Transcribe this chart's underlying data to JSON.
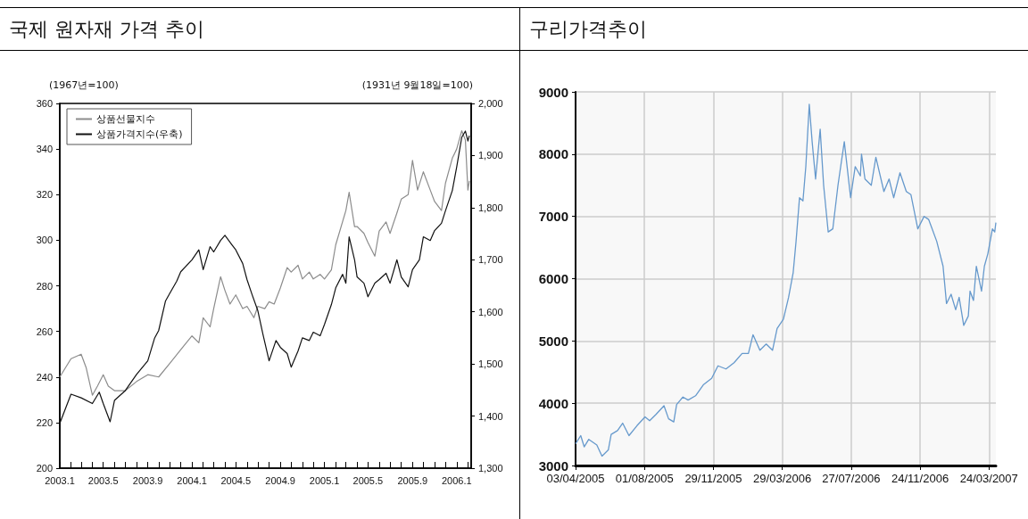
{
  "chart_data": [
    {
      "type": "line",
      "title": "국제 원자재 가격 추이",
      "annotations": [
        "(1967년=100)",
        "(1931년 9월18일=100)"
      ],
      "xlim": [
        "2003-01-01",
        "2006-02-10"
      ],
      "xticks": [
        {
          "value": "2003-01",
          "label": "2003.1"
        },
        {
          "value": "2003-02",
          "label": null
        },
        {
          "value": "2003-03",
          "label": null
        },
        {
          "value": "2003-04",
          "label": null
        },
        {
          "value": "2003-05",
          "label": "2003.5"
        },
        {
          "value": "2003-06",
          "label": null
        },
        {
          "value": "2003-07",
          "label": null
        },
        {
          "value": "2003-08",
          "label": null
        },
        {
          "value": "2003-09",
          "label": "2003.9"
        },
        {
          "value": "2003-10",
          "label": null
        },
        {
          "value": "2003-11",
          "label": null
        },
        {
          "value": "2003-12",
          "label": null
        },
        {
          "value": "2004-01",
          "label": "2004.1"
        },
        {
          "value": "2004-02",
          "label": null
        },
        {
          "value": "2004-03",
          "label": null
        },
        {
          "value": "2004-04",
          "label": null
        },
        {
          "value": "2004-05",
          "label": "2004.5"
        },
        {
          "value": "2004-06",
          "label": null
        },
        {
          "value": "2004-07",
          "label": null
        },
        {
          "value": "2004-08",
          "label": null
        },
        {
          "value": "2004-09",
          "label": "2004.9"
        },
        {
          "value": "2004-10",
          "label": null
        },
        {
          "value": "2004-11",
          "label": null
        },
        {
          "value": "2004-12",
          "label": null
        },
        {
          "value": "2005-01",
          "label": "2005.1"
        },
        {
          "value": "2005-02",
          "label": null
        },
        {
          "value": "2005-03",
          "label": null
        },
        {
          "value": "2005-04",
          "label": null
        },
        {
          "value": "2005-05",
          "label": "2005.5"
        },
        {
          "value": "2005-06",
          "label": null
        },
        {
          "value": "2005-07",
          "label": null
        },
        {
          "value": "2005-08",
          "label": null
        },
        {
          "value": "2005-09",
          "label": "2005.9"
        },
        {
          "value": "2005-10",
          "label": null
        },
        {
          "value": "2005-11",
          "label": null
        },
        {
          "value": "2005-12",
          "label": null
        },
        {
          "value": "2006-01",
          "label": "2006.1"
        },
        {
          "value": "2006-02",
          "label": null
        }
      ],
      "ylim": [
        200,
        360
      ],
      "yticks": [
        200,
        220,
        240,
        260,
        280,
        300,
        320,
        340,
        360
      ],
      "y2lim": [
        1300,
        2000
      ],
      "y2ticks": [
        {
          "value": 1300,
          "label": "1,300"
        },
        {
          "value": 1400,
          "label": "1,400"
        },
        {
          "value": 1500,
          "label": "1,500"
        },
        {
          "value": 1600,
          "label": "1,600"
        },
        {
          "value": 1700,
          "label": "1,700"
        },
        {
          "value": 1800,
          "label": "1,800"
        },
        {
          "value": 1900,
          "label": "1,900"
        },
        {
          "value": 2000,
          "label": "2,000"
        }
      ],
      "legend": "top left",
      "grid": false,
      "marker": "none",
      "line_style": "solid",
      "series": [
        {
          "name": "상품선물지수",
          "color": "#8c8c8c",
          "axis": "y",
          "x": [
            "2003-01-01",
            "2003-02-01",
            "2003-03-01",
            "2003-03-15",
            "2003-04-01",
            "2003-04-15",
            "2003-05-01",
            "2003-05-15",
            "2003-06-01",
            "2003-07-01",
            "2003-08-01",
            "2003-09-01",
            "2003-10-01",
            "2003-11-01",
            "2003-12-01",
            "2004-01-01",
            "2004-01-20",
            "2004-02-01",
            "2004-02-20",
            "2004-03-01",
            "2004-03-20",
            "2004-04-01",
            "2004-04-15",
            "2004-05-01",
            "2004-05-20",
            "2004-06-01",
            "2004-06-20",
            "2004-07-01",
            "2004-07-20",
            "2004-08-01",
            "2004-08-15",
            "2004-09-01",
            "2004-09-20",
            "2004-10-01",
            "2004-10-20",
            "2004-11-01",
            "2004-11-20",
            "2004-12-01",
            "2004-12-20",
            "2005-01-01",
            "2005-01-20",
            "2005-02-01",
            "2005-03-01",
            "2005-03-10",
            "2005-03-25",
            "2005-04-01",
            "2005-04-20",
            "2005-05-01",
            "2005-05-20",
            "2005-06-01",
            "2005-06-20",
            "2005-07-01",
            "2005-07-20",
            "2005-08-01",
            "2005-08-20",
            "2005-09-01",
            "2005-09-15",
            "2005-10-01",
            "2005-10-20",
            "2005-11-01",
            "2005-11-20",
            "2005-12-01",
            "2005-12-20",
            "2006-01-01",
            "2006-01-15",
            "2006-01-25",
            "2006-02-01",
            "2006-02-05"
          ],
          "values": [
            240,
            248,
            250,
            244,
            232,
            236,
            241,
            236,
            234,
            234,
            238,
            241,
            240,
            246,
            252,
            258,
            255,
            266,
            262,
            270,
            284,
            278,
            272,
            276,
            270,
            271,
            266,
            271,
            270,
            273,
            272,
            279,
            288,
            286,
            289,
            283,
            286,
            283,
            285,
            283,
            287,
            298,
            313,
            321,
            306,
            306,
            303,
            299,
            293,
            304,
            308,
            303,
            312,
            318,
            320,
            335,
            322,
            330,
            322,
            317,
            313,
            325,
            336,
            340,
            348,
            344,
            322,
            326
          ]
        },
        {
          "name": "상품가격지수(우축)",
          "color": "#111111",
          "axis": "y2",
          "x": [
            "2003-01-01",
            "2003-02-01",
            "2003-03-01",
            "2003-04-01",
            "2003-04-20",
            "2003-05-01",
            "2003-05-20",
            "2003-06-01",
            "2003-07-01",
            "2003-08-01",
            "2003-09-01",
            "2003-09-20",
            "2003-10-01",
            "2003-10-20",
            "2003-11-01",
            "2003-11-20",
            "2003-12-01",
            "2004-01-01",
            "2004-01-20",
            "2004-02-01",
            "2004-02-20",
            "2004-03-01",
            "2004-03-20",
            "2004-04-01",
            "2004-04-20",
            "2004-05-01",
            "2004-05-20",
            "2004-06-01",
            "2004-06-15",
            "2004-07-01",
            "2004-07-15",
            "2004-08-01",
            "2004-08-20",
            "2004-09-01",
            "2004-09-20",
            "2004-10-01",
            "2004-10-20",
            "2004-11-01",
            "2004-11-20",
            "2004-12-01",
            "2004-12-20",
            "2005-01-01",
            "2005-01-20",
            "2005-02-01",
            "2005-02-20",
            "2005-03-01",
            "2005-03-10",
            "2005-03-25",
            "2005-04-01",
            "2005-04-20",
            "2005-05-01",
            "2005-05-20",
            "2005-06-01",
            "2005-06-20",
            "2005-07-01",
            "2005-07-20",
            "2005-08-01",
            "2005-08-20",
            "2005-09-01",
            "2005-09-20",
            "2005-10-01",
            "2005-10-20",
            "2005-11-01",
            "2005-11-20",
            "2005-12-01",
            "2005-12-20",
            "2006-01-01",
            "2006-01-15",
            "2006-01-25",
            "2006-02-01",
            "2006-02-05"
          ],
          "values": [
            1386,
            1442,
            1435,
            1424,
            1446,
            1424,
            1389,
            1430,
            1449,
            1480,
            1506,
            1550,
            1564,
            1621,
            1636,
            1659,
            1677,
            1700,
            1719,
            1681,
            1725,
            1715,
            1737,
            1747,
            1729,
            1719,
            1693,
            1662,
            1633,
            1602,
            1557,
            1506,
            1545,
            1532,
            1520,
            1494,
            1525,
            1550,
            1545,
            1561,
            1554,
            1576,
            1614,
            1646,
            1672,
            1655,
            1744,
            1700,
            1667,
            1655,
            1629,
            1655,
            1662,
            1674,
            1655,
            1700,
            1667,
            1648,
            1681,
            1700,
            1744,
            1737,
            1756,
            1770,
            1794,
            1833,
            1878,
            1935,
            1947,
            1928,
            1938
          ]
        }
      ]
    },
    {
      "type": "line",
      "title": "구리가격추이",
      "xlim": [
        "2005-04-03",
        "2007-04-05"
      ],
      "xticks": [
        {
          "value": "2005-04-03",
          "label": "03/04/2005"
        },
        {
          "value": "2005-08-01",
          "label": "01/08/2005"
        },
        {
          "value": "2005-11-29",
          "label": "29/11/2005"
        },
        {
          "value": "2006-03-29",
          "label": "29/03/2006"
        },
        {
          "value": "2006-07-27",
          "label": "27/07/2006"
        },
        {
          "value": "2006-11-24",
          "label": "24/11/2006"
        },
        {
          "value": "2007-03-24",
          "label": "24/03/2007"
        }
      ],
      "ylim": [
        3000,
        9000
      ],
      "yticks": [
        3000,
        4000,
        5000,
        6000,
        7000,
        8000,
        9000
      ],
      "grid": true,
      "legend": false,
      "marker": "none",
      "line_style": "solid",
      "series": [
        {
          "color": "#6699cc",
          "x": [
            "2005-04-03",
            "2005-04-12",
            "2005-04-18",
            "2005-04-26",
            "2005-05-10",
            "2005-05-19",
            "2005-05-30",
            "2005-06-04",
            "2005-06-15",
            "2005-06-24",
            "2005-07-05",
            "2005-07-19",
            "2005-08-02",
            "2005-08-10",
            "2005-08-21",
            "2005-09-04",
            "2005-09-12",
            "2005-09-21",
            "2005-09-26",
            "2005-10-07",
            "2005-10-16",
            "2005-10-29",
            "2005-11-12",
            "2005-11-26",
            "2005-12-07",
            "2005-12-21",
            "2006-01-04",
            "2006-01-18",
            "2006-01-29",
            "2006-02-06",
            "2006-02-18",
            "2006-03-01",
            "2006-03-12",
            "2006-03-20",
            "2006-03-31",
            "2006-04-09",
            "2006-04-17",
            "2006-04-22",
            "2006-04-28",
            "2006-05-04",
            "2006-05-09",
            "2006-05-15",
            "2006-05-20",
            "2006-05-26",
            "2006-06-03",
            "2006-06-09",
            "2006-06-17",
            "2006-06-25",
            "2006-07-04",
            "2006-07-15",
            "2006-07-26",
            "2006-08-03",
            "2006-08-12",
            "2006-08-14",
            "2006-08-20",
            "2006-08-31",
            "2006-09-08",
            "2006-09-22",
            "2006-10-01",
            "2006-10-09",
            "2006-10-20",
            "2006-10-31",
            "2006-11-08",
            "2006-11-20",
            "2006-12-01",
            "2006-12-09",
            "2006-12-23",
            "2007-01-03",
            "2007-01-09",
            "2007-01-17",
            "2007-01-25",
            "2007-01-31",
            "2007-02-08",
            "2007-02-16",
            "2007-02-19",
            "2007-02-25",
            "2007-03-02",
            "2007-03-11",
            "2007-03-16",
            "2007-03-22",
            "2007-03-30",
            "2007-04-03",
            "2007-04-05"
          ],
          "values": [
            3350,
            3480,
            3300,
            3420,
            3330,
            3150,
            3250,
            3500,
            3560,
            3680,
            3480,
            3640,
            3780,
            3720,
            3820,
            3960,
            3750,
            3700,
            3980,
            4100,
            4050,
            4120,
            4300,
            4400,
            4600,
            4550,
            4650,
            4800,
            4800,
            5100,
            4850,
            4950,
            4850,
            5200,
            5350,
            5700,
            6100,
            6600,
            7300,
            7250,
            7800,
            8800,
            8200,
            7600,
            8400,
            7500,
            6750,
            6800,
            7500,
            8200,
            7300,
            7800,
            7650,
            8000,
            7600,
            7500,
            7950,
            7400,
            7600,
            7300,
            7700,
            7400,
            7350,
            6800,
            7000,
            6950,
            6600,
            6200,
            5600,
            5750,
            5500,
            5700,
            5250,
            5400,
            5800,
            5650,
            6200,
            5800,
            6200,
            6400,
            6800,
            6750,
            6900
          ]
        }
      ]
    }
  ]
}
